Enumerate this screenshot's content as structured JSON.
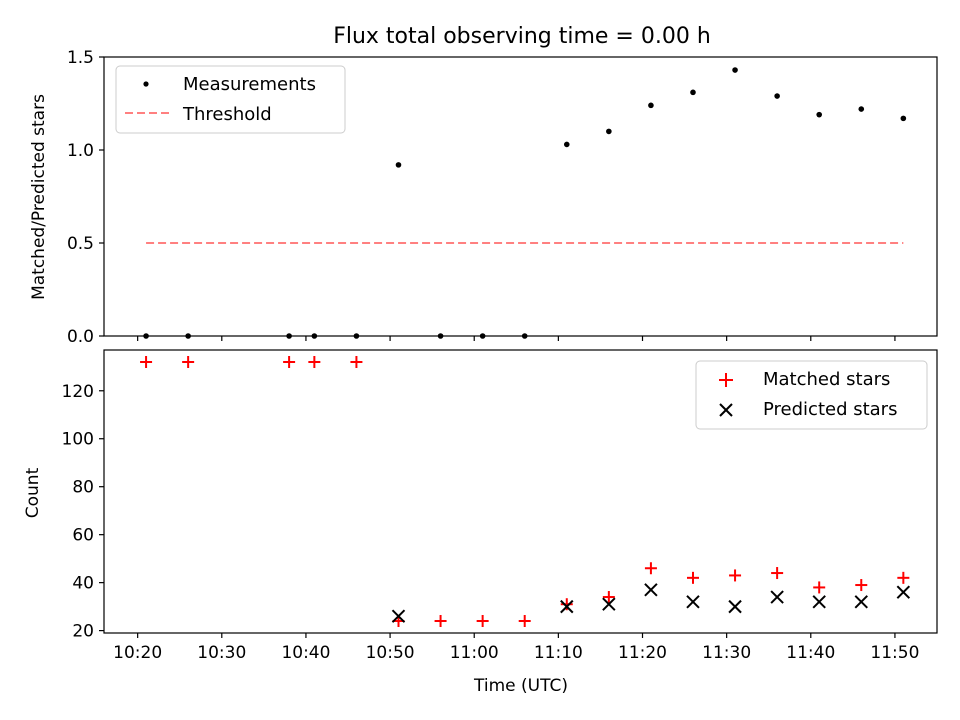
{
  "chart_data": [
    {
      "type": "scatter",
      "title": "Flux total observing time = 0.00 h",
      "xlabel": "",
      "ylabel": "Matched/Predicted stars",
      "ylim": [
        0,
        1.5
      ],
      "yticks": [
        "0.0",
        "0.5",
        "1.0",
        "1.5"
      ],
      "legend_position": "top-left",
      "series": [
        {
          "name": "Measurements",
          "kind": "points",
          "color": "#000000",
          "x": [
            "10:21",
            "10:26",
            "10:38",
            "10:41",
            "10:46",
            "10:51",
            "10:56",
            "11:01",
            "11:06",
            "11:11",
            "11:16",
            "11:21",
            "11:26",
            "11:31",
            "11:36",
            "11:41",
            "11:46",
            "11:51"
          ],
          "y": [
            0,
            0,
            0,
            0,
            0,
            0.92,
            0,
            0,
            0,
            1.03,
            1.1,
            1.24,
            1.31,
            1.43,
            1.29,
            1.19,
            1.22,
            1.17
          ]
        },
        {
          "name": "Threshold",
          "kind": "dashed-line",
          "color": "#ff8080",
          "x": [
            "10:21",
            "11:51"
          ],
          "y": [
            0.5,
            0.5
          ]
        }
      ]
    },
    {
      "type": "scatter",
      "title": "",
      "xlabel": "Time (UTC)",
      "ylabel": "Count",
      "ylim": [
        19,
        137
      ],
      "yticks": [
        "20",
        "40",
        "60",
        "80",
        "100",
        "120"
      ],
      "xlim": [
        "10:16",
        "11:55"
      ],
      "xticks": [
        "10:20",
        "10:30",
        "10:40",
        "10:50",
        "11:00",
        "11:10",
        "11:20",
        "11:30",
        "11:40",
        "11:50"
      ],
      "legend_position": "top-right",
      "series": [
        {
          "name": "Matched stars",
          "marker": "+",
          "color": "#ff0000",
          "x": [
            "10:21",
            "10:26",
            "10:38",
            "10:41",
            "10:46",
            "10:51",
            "10:56",
            "11:01",
            "11:06",
            "11:11",
            "11:16",
            "11:21",
            "11:26",
            "11:31",
            "11:36",
            "11:41",
            "11:46",
            "11:51"
          ],
          "y": [
            132,
            132,
            132,
            132,
            132,
            24,
            24,
            24,
            24,
            31,
            34,
            46,
            42,
            43,
            44,
            38,
            39,
            42
          ]
        },
        {
          "name": "Predicted stars",
          "marker": "x",
          "color": "#000000",
          "x": [
            "10:51",
            "11:11",
            "11:16",
            "11:21",
            "11:26",
            "11:31",
            "11:36",
            "11:41",
            "11:46",
            "11:51"
          ],
          "y": [
            26,
            30,
            31,
            37,
            32,
            30,
            34,
            32,
            32,
            36
          ]
        }
      ]
    }
  ]
}
